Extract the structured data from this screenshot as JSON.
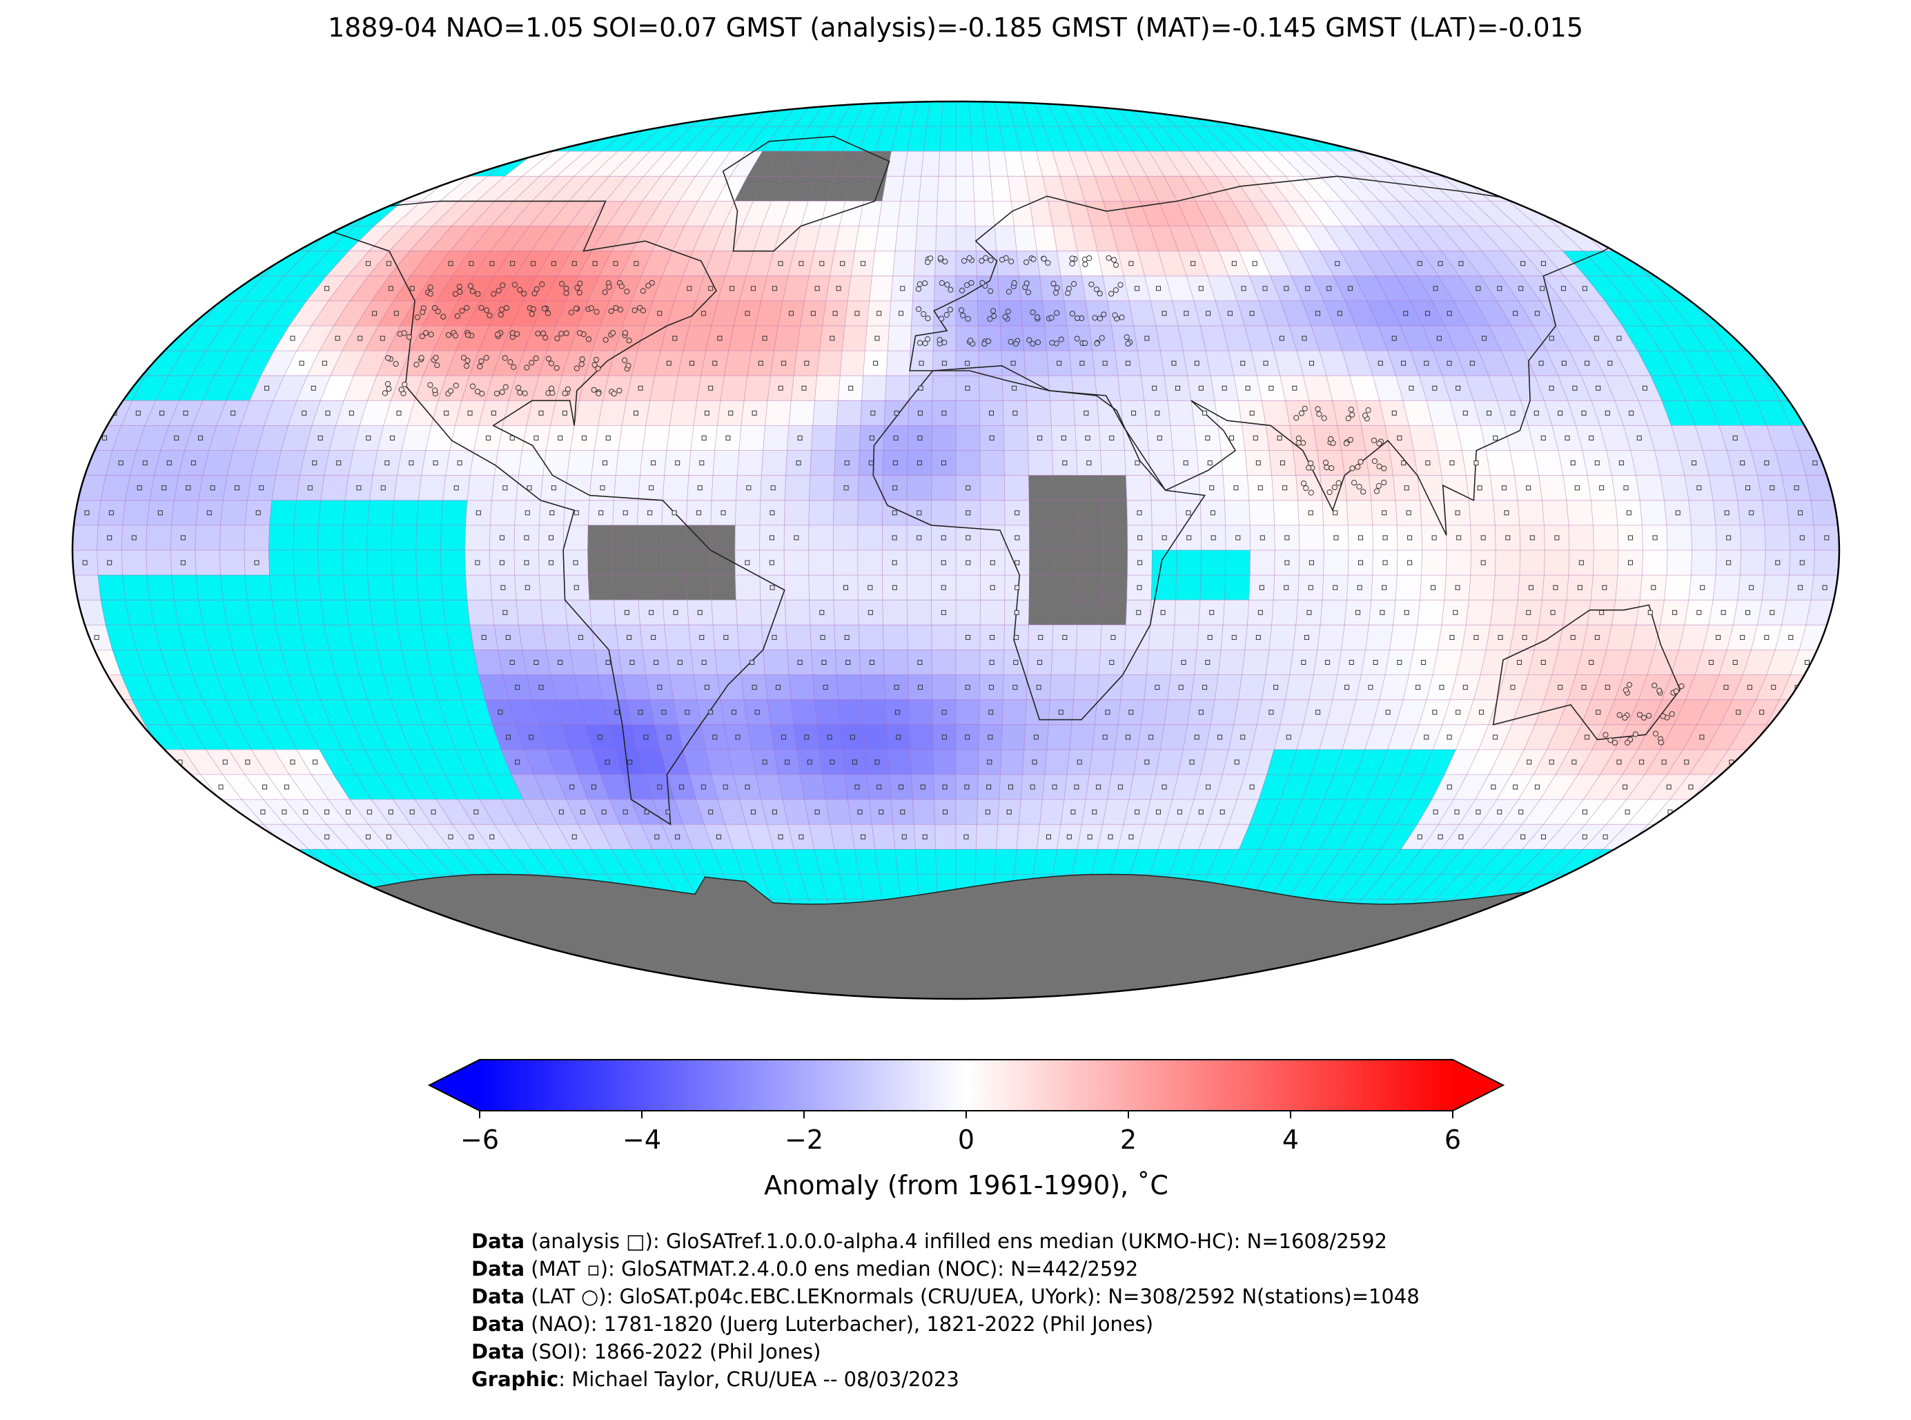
{
  "title": "1889-04 NAO=1.05 SOI=0.07 GMST (analysis)=-0.185 GMST (MAT)=-0.145 GMST (LAT)=-0.015",
  "colors": {
    "no_data_ocean": "#00f5f5",
    "no_data_land": "#737373",
    "cold": "#0000ff",
    "warm": "#ff0000",
    "grid": "#b068b0"
  },
  "colorbar": {
    "label": "Anomaly (from 1961-1990), ˚C",
    "ticks": [
      "−6",
      "−4",
      "−2",
      "0",
      "2",
      "4",
      "6"
    ],
    "tick_values": [
      -6,
      -4,
      -2,
      0,
      2,
      4,
      6
    ],
    "range": [
      -6,
      6
    ],
    "extend": "both"
  },
  "credits": [
    {
      "bold": "Data",
      "text": " (analysis □): GloSATref.1.0.0.0-alpha.4 infilled ens median (UKMO-HC): N=1608/2592"
    },
    {
      "bold": "Data",
      "text": " (MAT ▫): GloSATMAT.2.4.0.0 ens median (NOC): N=442/2592"
    },
    {
      "bold": "Data",
      "text": " (LAT ○): GloSAT.p04c.EBC.LEKnormals (CRU/UEA, UYork): N=308/2592 N(stations)=1048"
    },
    {
      "bold": "Data",
      "text": " (NAO): 1781-1820 (Juerg Luterbacher), 1821-2022 (Phil Jones)"
    },
    {
      "bold": "Data",
      "text": " (SOI): 1866-2022 (Phil Jones)"
    },
    {
      "bold": "Graphic",
      "text": ": Michael Taylor, CRU/UEA -- 08/03/2023"
    }
  ],
  "anomaly_field": {
    "grid": "5x5 degree",
    "regions": [
      {
        "name": "North America",
        "anomaly": 2.8
      },
      {
        "name": "North Atlantic",
        "anomaly": 2.0
      },
      {
        "name": "Europe",
        "anomaly": -2.0
      },
      {
        "name": "Northern Russia",
        "anomaly": 2.5
      },
      {
        "name": "Central Asia",
        "anomaly": -2.0
      },
      {
        "name": "India",
        "anomaly": 1.5
      },
      {
        "name": "South Atlantic",
        "anomaly": -2.5
      },
      {
        "name": "Southeast Pacific",
        "anomaly": -2.5
      },
      {
        "name": "Southwest Pacific",
        "anomaly": 1.5
      },
      {
        "name": "Australia",
        "anomaly": 0.8
      },
      {
        "name": "Tropical Pacific",
        "anomaly": -1.0
      }
    ]
  }
}
